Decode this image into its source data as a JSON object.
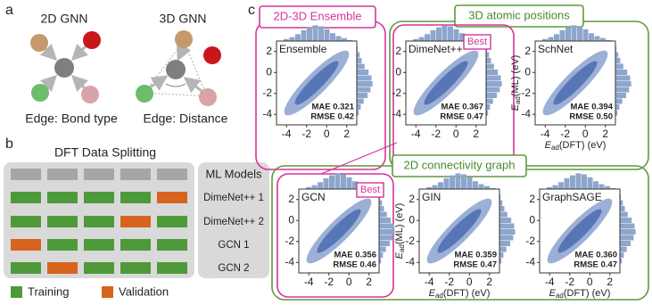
{
  "panel_a": {
    "label": "a",
    "gnn2d": {
      "title": "2D GNN",
      "caption": "Edge: Bond type"
    },
    "gnn3d": {
      "title": "3D GNN",
      "caption": "Edge: Distance"
    }
  },
  "panel_b": {
    "label": "b",
    "title": "DFT Data Splitting",
    "header": "ML Models",
    "models": [
      "DimeNet++ 1",
      "DimeNet++ 2",
      "GCN 1",
      "GCN 2"
    ],
    "cells": [
      [
        "#a6a6a6",
        "#a6a6a6",
        "#a6a6a6",
        "#a6a6a6",
        "#a6a6a6"
      ],
      [
        "#4e9a3a",
        "#4e9a3a",
        "#4e9a3a",
        "#4e9a3a",
        "#d7641e"
      ],
      [
        "#4e9a3a",
        "#4e9a3a",
        "#4e9a3a",
        "#d7641e",
        "#4e9a3a"
      ],
      [
        "#d7641e",
        "#4e9a3a",
        "#4e9a3a",
        "#4e9a3a",
        "#4e9a3a"
      ],
      [
        "#4e9a3a",
        "#d7641e",
        "#4e9a3a",
        "#4e9a3a",
        "#4e9a3a"
      ]
    ],
    "legend": [
      {
        "name": "Training",
        "color": "#4e9a3a"
      },
      {
        "name": "Validation",
        "color": "#d7641e"
      }
    ]
  },
  "panel_c": {
    "label": "c",
    "groups": [
      "2D-3D Ensemble",
      "3D atomic positions",
      "2D connectivity graph"
    ],
    "xlim": [
      -5,
      3
    ],
    "ylim": [
      -5,
      3
    ],
    "xticks": [
      -4,
      -2,
      0,
      2
    ],
    "yticks": [
      -4,
      -2,
      0,
      2
    ],
    "plots": [
      {
        "name": "Ensemble",
        "metrics": [
          "MAE 0.321",
          "RMSE 0.42"
        ]
      },
      {
        "name": "DimeNet++",
        "metrics": [
          "MAE 0.367",
          "RMSE 0.47"
        ],
        "best": "Best"
      },
      {
        "name": "SchNet",
        "metrics": [
          "MAE 0.394",
          "RMSE 0.50"
        ],
        "y_label": {
          "main": "E",
          "sub": "ad",
          "rest": "(ML) (eV)"
        },
        "x_label": {
          "main": "E",
          "sub": "ad",
          "rest": "(DFT) (eV)"
        }
      },
      {
        "name": "GCN",
        "metrics": [
          "MAE 0.356",
          "RMSE 0.46"
        ],
        "best": "Best"
      },
      {
        "name": "GIN",
        "metrics": [
          "MAE 0.359",
          "RMSE 0.47"
        ],
        "y_label": {
          "main": "E",
          "sub": "ad",
          "rest": "(ML) (eV)"
        },
        "x_label": {
          "main": "E",
          "sub": "ad",
          "rest": "(DFT) (eV)"
        }
      },
      {
        "name": "GraphSAGE",
        "metrics": [
          "MAE 0.360",
          "RMSE 0.47"
        ],
        "x_label": {
          "main": "E",
          "sub": "ad",
          "rest": "(DFT) (eV)"
        }
      }
    ]
  }
}
